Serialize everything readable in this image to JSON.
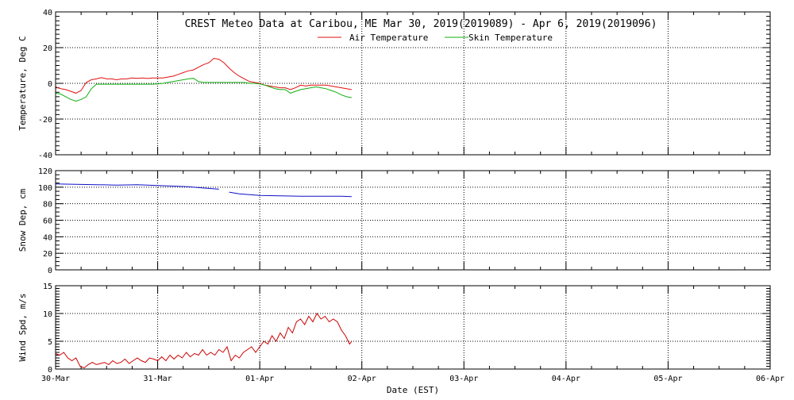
{
  "figure": {
    "title": "CREST Meteo Data at Caribou, ME   Mar 30, 2019(2019089) - Apr  6, 2019(2019096)",
    "xlabel": "Date (EST)",
    "x_tick_labels": [
      "30-Mar",
      "31-Mar",
      "01-Apr",
      "02-Apr",
      "03-Apr",
      "04-Apr",
      "05-Apr",
      "06-Apr"
    ]
  },
  "colors": {
    "air": "#e01010",
    "skin": "#10b010",
    "snow": "#1010c8",
    "wind": "#cc0000",
    "frame": "#000000"
  },
  "chart_data": [
    {
      "type": "line",
      "ylabel": "Temperature, Deg C",
      "ylim": [
        -40,
        40
      ],
      "y_ticks": [
        -40,
        -20,
        0,
        20,
        40
      ],
      "xlim": [
        0,
        7
      ],
      "x_unit": "days since 30-Mar 00:00 EST",
      "grid": true,
      "legend": "top-center",
      "series": [
        {
          "name": "Air Temperature",
          "color": "#e01010",
          "x": [
            0.0,
            0.05,
            0.1,
            0.15,
            0.2,
            0.25,
            0.3,
            0.35,
            0.4,
            0.45,
            0.5,
            0.55,
            0.6,
            0.65,
            0.7,
            0.75,
            0.8,
            0.85,
            0.9,
            0.95,
            1.0,
            1.05,
            1.1,
            1.15,
            1.2,
            1.25,
            1.3,
            1.35,
            1.4,
            1.45,
            1.5,
            1.55,
            1.6,
            1.65,
            1.7,
            1.75,
            1.8,
            1.85,
            1.9,
            1.95,
            2.0,
            2.05,
            2.1,
            2.15,
            2.2,
            2.25,
            2.3,
            2.35,
            2.4,
            2.45,
            2.5,
            2.55,
            2.6,
            2.65,
            2.7,
            2.75,
            2.8,
            2.85,
            2.9
          ],
          "y": [
            -2.0,
            -3.0,
            -3.5,
            -4.5,
            -5.5,
            -4.0,
            0.5,
            2.0,
            2.5,
            3.2,
            2.5,
            2.5,
            2.0,
            2.5,
            2.5,
            3.0,
            2.8,
            3.0,
            2.7,
            3.0,
            3.0,
            3.0,
            3.5,
            4.0,
            5.0,
            6.0,
            7.0,
            7.5,
            9.0,
            10.5,
            11.5,
            14.0,
            13.5,
            11.5,
            8.5,
            6.0,
            4.0,
            2.5,
            1.0,
            0.5,
            0.0,
            -1.0,
            -1.5,
            -2.0,
            -2.5,
            -2.5,
            -3.5,
            -2.5,
            -1.0,
            -1.5,
            -1.0,
            -1.0,
            -1.0,
            -1.0,
            -1.5,
            -2.0,
            -2.5,
            -3.0,
            -3.5
          ]
        },
        {
          "name": "Skin Temperature",
          "color": "#10b010",
          "x": [
            0.0,
            0.05,
            0.1,
            0.15,
            0.2,
            0.25,
            0.3,
            0.35,
            0.4,
            0.45,
            0.5,
            0.55,
            0.6,
            0.65,
            0.7,
            0.75,
            0.8,
            0.85,
            0.9,
            0.95,
            1.0,
            1.05,
            1.1,
            1.15,
            1.2,
            1.25,
            1.3,
            1.35,
            1.4,
            1.45,
            1.5,
            1.55,
            1.6,
            1.65,
            1.7,
            1.75,
            1.8,
            1.85,
            1.9,
            1.95,
            2.0,
            2.05,
            2.1,
            2.15,
            2.2,
            2.25,
            2.3,
            2.35,
            2.4,
            2.45,
            2.5,
            2.55,
            2.6,
            2.65,
            2.7,
            2.75,
            2.8,
            2.85,
            2.9
          ],
          "y": [
            -5.5,
            -6.0,
            -7.5,
            -9.0,
            -10.0,
            -9.0,
            -7.5,
            -3.0,
            -0.5,
            -0.5,
            -0.5,
            -0.5,
            -0.5,
            -0.5,
            -0.5,
            -0.5,
            -0.5,
            -0.5,
            -0.5,
            -0.5,
            -0.3,
            0.0,
            0.5,
            1.0,
            1.5,
            2.0,
            2.5,
            2.8,
            1.0,
            0.5,
            0.5,
            0.5,
            0.5,
            0.5,
            0.5,
            0.5,
            0.5,
            0.5,
            0.0,
            0.0,
            -0.3,
            -1.0,
            -2.0,
            -3.0,
            -3.5,
            -3.5,
            -5.5,
            -4.5,
            -3.5,
            -3.0,
            -2.5,
            -2.0,
            -2.5,
            -3.0,
            -4.0,
            -5.0,
            -6.5,
            -7.5,
            -8.0
          ]
        }
      ]
    },
    {
      "type": "line",
      "ylabel": "Snow Dep, cm",
      "ylim": [
        0,
        120
      ],
      "y_ticks": [
        0,
        20,
        40,
        60,
        80,
        100,
        120
      ],
      "xlim": [
        0,
        7
      ],
      "x_unit": "days since 30-Mar 00:00 EST",
      "grid": true,
      "series": [
        {
          "name": "",
          "color": "#1010c8",
          "x": [
            0.0,
            0.2,
            0.4,
            0.6,
            0.8,
            0.9,
            1.0,
            1.1,
            1.2,
            1.3,
            1.4,
            1.5,
            1.6,
            1.65,
            1.7,
            1.8,
            1.9,
            2.0,
            2.2,
            2.4,
            2.6,
            2.8,
            2.9
          ],
          "y": [
            104,
            103.5,
            103,
            102.5,
            103,
            102.5,
            102,
            101.5,
            101,
            100.5,
            99.5,
            98.5,
            97.5,
            null,
            94,
            92,
            91,
            90,
            89.5,
            89,
            89,
            89,
            88.5
          ]
        }
      ]
    },
    {
      "type": "line",
      "ylabel": "Wind Spd, m/s",
      "ylim": [
        0,
        15
      ],
      "y_ticks": [
        0,
        5,
        10,
        15
      ],
      "xlim": [
        0,
        7
      ],
      "x_unit": "days since 30-Mar 00:00 EST",
      "grid": true,
      "series": [
        {
          "name": "",
          "color": "#cc0000",
          "x": [
            0.0,
            0.04,
            0.08,
            0.12,
            0.16,
            0.2,
            0.24,
            0.28,
            0.32,
            0.36,
            0.4,
            0.44,
            0.48,
            0.52,
            0.56,
            0.6,
            0.64,
            0.68,
            0.72,
            0.76,
            0.8,
            0.84,
            0.88,
            0.92,
            0.96,
            1.0,
            1.04,
            1.08,
            1.12,
            1.16,
            1.2,
            1.24,
            1.28,
            1.32,
            1.36,
            1.4,
            1.44,
            1.48,
            1.52,
            1.56,
            1.6,
            1.64,
            1.68,
            1.72,
            1.76,
            1.8,
            1.84,
            1.88,
            1.92,
            1.96,
            2.0,
            2.04,
            2.08,
            2.12,
            2.16,
            2.2,
            2.24,
            2.28,
            2.32,
            2.36,
            2.4,
            2.44,
            2.48,
            2.52,
            2.56,
            2.6,
            2.64,
            2.68,
            2.72,
            2.76,
            2.8,
            2.84,
            2.88,
            2.9
          ],
          "y": [
            2.8,
            2.5,
            3.0,
            2.0,
            1.5,
            2.0,
            0.5,
            0.2,
            0.8,
            1.2,
            0.8,
            1.0,
            1.2,
            0.8,
            1.5,
            1.0,
            1.2,
            1.8,
            1.0,
            1.5,
            2.0,
            1.5,
            1.2,
            2.0,
            1.8,
            1.5,
            2.2,
            1.5,
            2.5,
            1.8,
            2.5,
            2.0,
            3.0,
            2.2,
            2.8,
            2.5,
            3.5,
            2.5,
            3.0,
            2.5,
            3.5,
            3.0,
            4.0,
            1.5,
            2.5,
            2.0,
            3.0,
            3.5,
            4.0,
            3.0,
            4.0,
            5.0,
            4.5,
            6.0,
            5.0,
            6.5,
            5.5,
            7.5,
            6.5,
            8.5,
            9.0,
            8.0,
            9.5,
            8.5,
            10.0,
            9.0,
            9.5,
            8.5,
            9.0,
            8.5,
            7.0,
            6.0,
            4.5,
            5.0
          ]
        }
      ]
    }
  ]
}
